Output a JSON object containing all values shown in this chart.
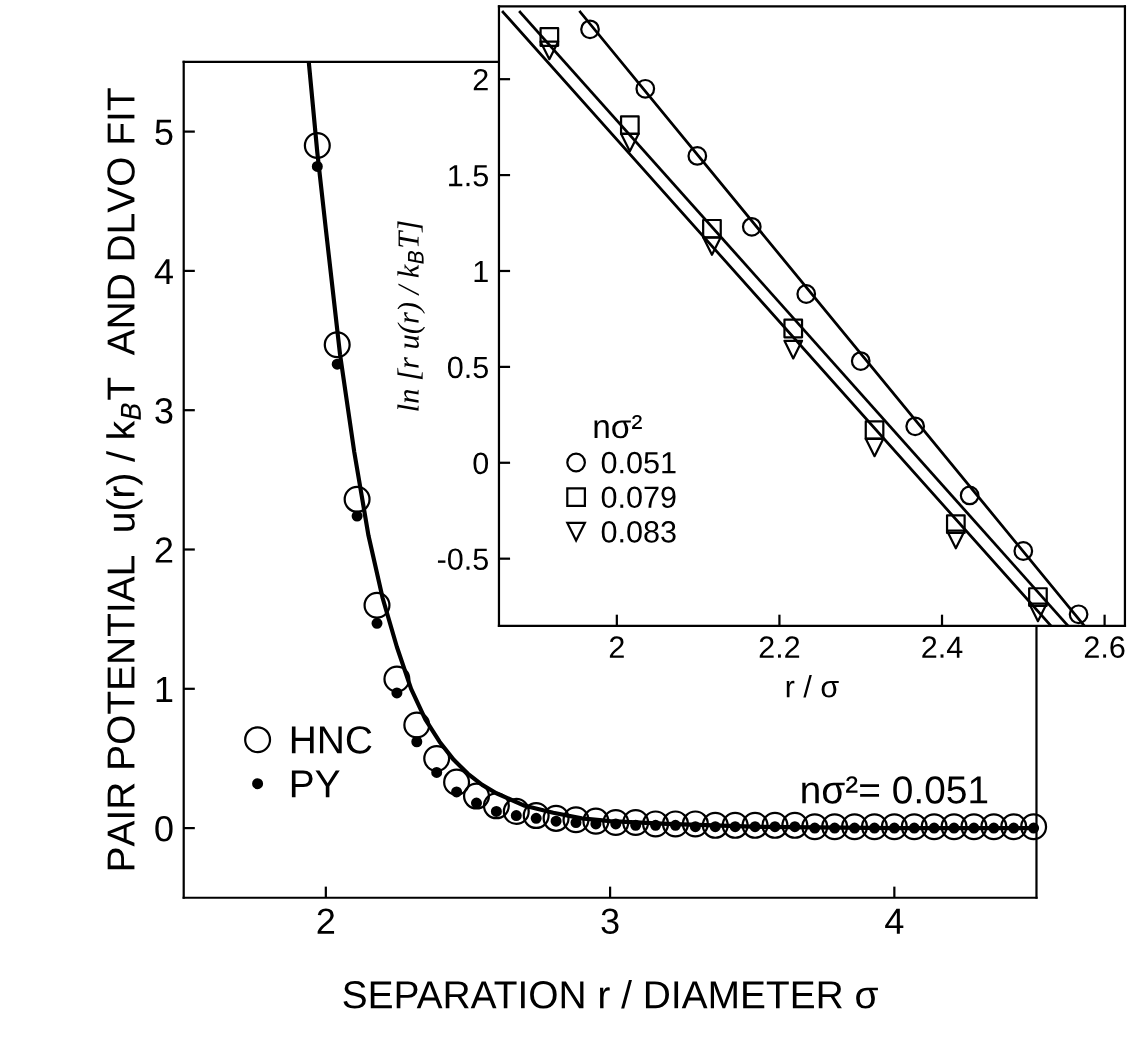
{
  "chart_data": [
    {
      "type": "scatter",
      "xlabel": "SEPARATION r / DIAMETER σ",
      "ylabel": "PAIR POTENTIAL  u(r) / k$_{B}$T  AND DLVO FIT",
      "xlim": [
        1.5,
        4.5
      ],
      "ylim": [
        -0.5,
        5.5
      ],
      "xticks": [
        2,
        3,
        4
      ],
      "yticks": [
        0,
        1,
        2,
        3,
        4,
        5
      ],
      "grid": false,
      "legend": "bottom left",
      "annotations": [
        {
          "text": "nσ²= 0.051",
          "x": 4.0,
          "y": 0.12
        }
      ],
      "series": [
        {
          "name": "HNC",
          "marker": "circle",
          "color": "#000000",
          "sizes": [
            1,
            1,
            1,
            1,
            1,
            1,
            1,
            1,
            1,
            1,
            1,
            1,
            1,
            1,
            1,
            1,
            1,
            1,
            1,
            1,
            1,
            1,
            1,
            1,
            1,
            1,
            1,
            1,
            1,
            1,
            1,
            1,
            1,
            1,
            1,
            1,
            1
          ],
          "x": [
            1.97,
            2.04,
            2.11,
            2.18,
            2.25,
            2.32,
            2.39,
            2.46,
            2.53,
            2.6,
            2.67,
            2.74,
            2.81,
            2.88,
            2.95,
            3.02,
            3.09,
            3.16,
            3.23,
            3.3,
            3.37,
            3.44,
            3.51,
            3.58,
            3.65,
            3.72,
            3.79,
            3.86,
            3.93,
            4.0,
            4.07,
            4.14,
            4.21,
            4.28,
            4.35,
            4.42,
            4.49
          ],
          "values": [
            4.9,
            3.47,
            2.36,
            1.6,
            1.07,
            0.74,
            0.5,
            0.33,
            0.23,
            0.16,
            0.12,
            0.09,
            0.07,
            0.06,
            0.05,
            0.04,
            0.04,
            0.03,
            0.03,
            0.03,
            0.02,
            0.02,
            0.02,
            0.02,
            0.02,
            0.01,
            0.01,
            0.01,
            0.01,
            0.01,
            0.01,
            0.01,
            0.01,
            0.01,
            0.01,
            0.01,
            0.01
          ]
        },
        {
          "name": "PY",
          "marker": "circle",
          "color": "#000000",
          "sizes": [
            0.125,
            0.125,
            0.125,
            0.125,
            0.125,
            0.125,
            0.125,
            0.125,
            0.125,
            0.125,
            0.125,
            0.125,
            0.125,
            0.125,
            0.125,
            0.125,
            0.125,
            0.125,
            0.125,
            0.125,
            0.125,
            0.125,
            0.125,
            0.125,
            0.125,
            0.125,
            0.125,
            0.125,
            0.125,
            0.125,
            0.125,
            0.125,
            0.125,
            0.125,
            0.125,
            0.125,
            0.125
          ],
          "x": [
            1.97,
            2.04,
            2.11,
            2.18,
            2.25,
            2.32,
            2.39,
            2.46,
            2.53,
            2.6,
            2.67,
            2.74,
            2.81,
            2.88,
            2.95,
            3.02,
            3.09,
            3.16,
            3.23,
            3.3,
            3.37,
            3.44,
            3.51,
            3.58,
            3.65,
            3.72,
            3.79,
            3.86,
            3.93,
            4.0,
            4.07,
            4.14,
            4.21,
            4.28,
            4.35,
            4.42,
            4.49
          ],
          "values": [
            4.75,
            3.33,
            2.24,
            1.47,
            0.97,
            0.62,
            0.4,
            0.26,
            0.18,
            0.12,
            0.09,
            0.07,
            0.05,
            0.04,
            0.03,
            0.03,
            0.02,
            0.02,
            0.02,
            0.01,
            0.01,
            0.01,
            0.01,
            0.01,
            0.01,
            0.0,
            0.0,
            0.0,
            0.0,
            0.0,
            0.0,
            0.0,
            0.0,
            0.0,
            0.0,
            0.0,
            0.0
          ]
        },
        {
          "type": "line",
          "color": "#000000",
          "x": [
            1.94,
            1.97,
            2.0,
            2.05,
            2.1,
            2.15,
            2.2,
            2.25,
            2.3,
            2.35,
            2.4,
            2.45,
            2.5,
            2.55,
            2.6,
            2.7,
            2.8,
            2.9,
            3.0,
            3.2,
            3.5,
            4.0,
            4.5
          ],
          "values": [
            5.5,
            4.85,
            4.3,
            3.4,
            2.7,
            2.1,
            1.65,
            1.3,
            1.0,
            0.78,
            0.62,
            0.49,
            0.39,
            0.31,
            0.25,
            0.16,
            0.11,
            0.07,
            0.05,
            0.03,
            0.01,
            0.0,
            0.0
          ]
        }
      ]
    },
    {
      "type": "scatter",
      "xlabel": "r / σ",
      "ylabel": "ln [r u(r) / k$_{B}$T]",
      "xlim": [
        1.855,
        2.625
      ],
      "ylim": [
        -0.85,
        2.38
      ],
      "xticks": [
        2,
        2.2,
        2.4,
        2.6
      ],
      "yticks": [
        -0.5,
        0,
        0.5,
        1,
        1.5,
        2
      ],
      "grid": false,
      "legend": "bottom left",
      "legend_title": "nσ²",
      "series": [
        {
          "name": "0.051",
          "marker": "circle",
          "color": "#000000",
          "x": [
            1.967,
            2.035,
            2.099,
            2.166,
            2.233,
            2.3,
            2.367,
            2.434,
            2.5,
            2.568
          ],
          "values": [
            2.26,
            1.95,
            1.6,
            1.23,
            0.88,
            0.53,
            0.19,
            -0.17,
            -0.46,
            -0.79
          ]
        },
        {
          "name": "0.079",
          "marker": "square",
          "color": "#000000",
          "x": [
            1.917,
            2.016,
            2.117,
            2.217,
            2.317,
            2.417,
            2.518
          ],
          "values": [
            2.22,
            1.76,
            1.22,
            0.7,
            0.17,
            -0.32,
            -0.7
          ]
        },
        {
          "name": "0.083",
          "marker": "triangle",
          "color": "#000000",
          "x": [
            1.917,
            2.016,
            2.117,
            2.217,
            2.317,
            2.417,
            2.518
          ],
          "values": [
            2.15,
            1.67,
            1.13,
            0.59,
            0.08,
            -0.4,
            -0.78
          ]
        },
        {
          "type": "line",
          "color": "#000000",
          "x": [
            1.955,
            2.575
          ],
          "values": [
            2.35,
            -0.85
          ]
        },
        {
          "type": "line",
          "color": "#000000",
          "x": [
            1.881,
            2.555
          ],
          "values": [
            2.35,
            -0.85
          ]
        },
        {
          "type": "line",
          "color": "#000000",
          "x": [
            1.86,
            2.534
          ],
          "values": [
            2.35,
            -0.85
          ]
        }
      ]
    }
  ]
}
